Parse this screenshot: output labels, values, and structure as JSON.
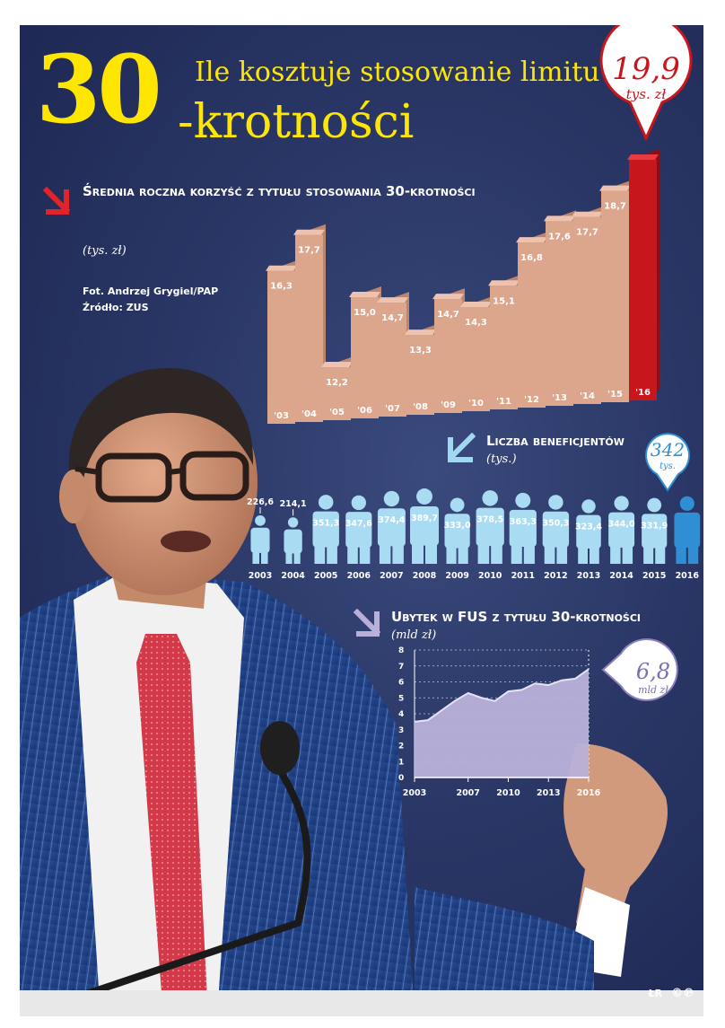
{
  "header": {
    "big_number": "30",
    "title_line1": "Ile kosztuje stosowanie limitu",
    "title_line2": "-krotności",
    "highlight_value": "19,9",
    "highlight_unit": "tys. zł"
  },
  "credits": {
    "photo": "Fot. Andrzej Grygiel/PAP",
    "source": "Źródło: ZUS",
    "author": "ŁR",
    "logo": "©℗"
  },
  "colors": {
    "background": "#2a3766",
    "accent_yellow": "#ffe600",
    "bar_tan": "#d9a48a",
    "bar_red": "#c8161d",
    "person_light": "#a7dcf2",
    "person_highlight": "#2f8ed4",
    "area_purple": "#b8b0d8"
  },
  "chart_data": [
    {
      "type": "bar",
      "title": "Średnia roczna korzyść z tytułu stosowania 30-krotności",
      "unit": "(tys. zł)",
      "categories": [
        "'03",
        "'04",
        "'05",
        "'06",
        "'07",
        "'08",
        "'09",
        "'10",
        "'11",
        "'12",
        "'13",
        "'14",
        "'15",
        "'16"
      ],
      "values": [
        16.3,
        17.7,
        12.2,
        15.0,
        14.7,
        13.3,
        14.7,
        14.3,
        15.1,
        16.8,
        17.6,
        17.7,
        18.7,
        19.9
      ],
      "labels": [
        "16,3",
        "17,7",
        "12,2",
        "15,0",
        "14,7",
        "13,3",
        "14,7",
        "14,3",
        "15,1",
        "16,8",
        "17,6",
        "17,7",
        "18,7",
        ""
      ],
      "highlight_index": 13
    },
    {
      "type": "bar",
      "title": "Liczba beneficjentów",
      "unit": "(tys.)",
      "categories": [
        "2003",
        "2004",
        "2005",
        "2006",
        "2007",
        "2008",
        "2009",
        "2010",
        "2011",
        "2012",
        "2013",
        "2014",
        "2015",
        "2016"
      ],
      "values": [
        226.6,
        214.1,
        351.3,
        347.6,
        374.4,
        389.7,
        333.0,
        378.5,
        363.3,
        350.3,
        323.4,
        344.0,
        331.9,
        342
      ],
      "labels": [
        "226,6",
        "214,1",
        "351,3",
        "347,6",
        "374,4",
        "389,7",
        "333,0",
        "378,5",
        "363,3",
        "350,3",
        "323,4",
        "344,0",
        "331,9",
        ""
      ],
      "highlight_index": 13,
      "highlight_value": "342",
      "highlight_unit": "tys."
    },
    {
      "type": "area",
      "title": "Ubytek w FUS z tytułu 30-krotności",
      "unit": "(mld zł)",
      "x": [
        2003,
        2004,
        2005,
        2006,
        2007,
        2008,
        2009,
        2010,
        2011,
        2012,
        2013,
        2014,
        2015,
        2016
      ],
      "values": [
        3.5,
        3.6,
        4.2,
        4.8,
        5.3,
        5.0,
        4.8,
        5.4,
        5.5,
        5.9,
        5.8,
        6.1,
        6.2,
        6.8
      ],
      "xticks": [
        "2003",
        "2007",
        "2010",
        "2013",
        "2016"
      ],
      "ylim": [
        0,
        8
      ],
      "yticks": [
        "0",
        "1",
        "2",
        "3",
        "4",
        "5",
        "6",
        "7",
        "8"
      ],
      "highlight_value": "6,8",
      "highlight_unit": "mld zł"
    }
  ]
}
